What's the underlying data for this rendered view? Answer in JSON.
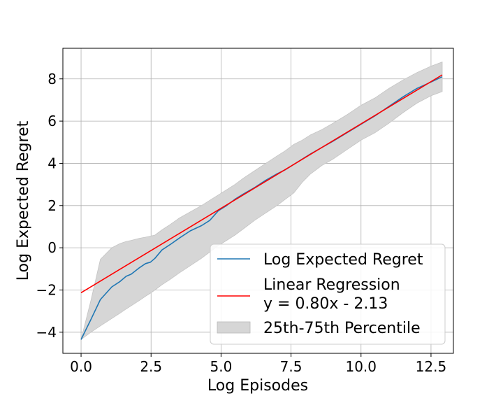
{
  "chart_data": {
    "type": "line",
    "xlabel": "Log Episodes",
    "ylabel": "Log Expected Regret",
    "xlim": [
      -0.65,
      13.3
    ],
    "ylim": [
      -5.0,
      9.45
    ],
    "xticks": [
      0.0,
      2.5,
      5.0,
      7.5,
      10.0,
      12.5
    ],
    "xtick_labels": [
      "0.0",
      "2.5",
      "5.0",
      "7.5",
      "10.0",
      "12.5"
    ],
    "yticks": [
      -4,
      -2,
      0,
      2,
      4,
      6,
      8
    ],
    "ytick_labels": [
      "−4",
      "−2",
      "0",
      "2",
      "4",
      "6",
      "8"
    ],
    "grid": true,
    "legend_position": "lower-right",
    "series": [
      {
        "name": "Log Expected Regret",
        "color": "#1f77b4",
        "kind": "line",
        "x": [
          0,
          0.35,
          0.69,
          1.1,
          1.39,
          1.61,
          1.79,
          2.08,
          2.3,
          2.48,
          2.64,
          2.89,
          3.18,
          3.5,
          3.9,
          4.3,
          4.6,
          4.9,
          5.2,
          5.5,
          5.8,
          6.2,
          6.6,
          7.0,
          7.3,
          7.6,
          7.9,
          8.2,
          8.6,
          9.0,
          9.5,
          10.0,
          10.5,
          11.0,
          11.5,
          12.0,
          12.5,
          12.9
        ],
        "y": [
          -4.35,
          -3.4,
          -2.45,
          -1.85,
          -1.6,
          -1.35,
          -1.25,
          -0.95,
          -0.75,
          -0.68,
          -0.5,
          -0.1,
          0.15,
          0.45,
          0.8,
          1.05,
          1.3,
          1.75,
          2.0,
          2.3,
          2.55,
          2.85,
          3.2,
          3.5,
          3.7,
          3.95,
          4.2,
          4.45,
          4.75,
          5.05,
          5.45,
          5.85,
          6.25,
          6.7,
          7.15,
          7.55,
          7.85,
          8.1
        ]
      },
      {
        "name": "Linear Regression\ny = 0.80x - 2.13",
        "color": "#ff0000",
        "kind": "line",
        "slope": 0.8,
        "intercept": -2.13,
        "x": [
          0,
          12.9
        ],
        "y": [
          -2.13,
          8.19
        ]
      },
      {
        "name": "25th-75th Percentile",
        "color": "#d6d6d6",
        "kind": "band",
        "x": [
          0,
          0.35,
          0.69,
          1.1,
          1.39,
          1.61,
          1.79,
          2.08,
          2.3,
          2.48,
          2.64,
          2.89,
          3.18,
          3.5,
          3.9,
          4.3,
          4.6,
          4.9,
          5.2,
          5.5,
          5.8,
          6.2,
          6.6,
          7.0,
          7.3,
          7.6,
          7.9,
          8.2,
          8.6,
          9.0,
          9.5,
          10.0,
          10.5,
          11.0,
          11.5,
          12.0,
          12.5,
          12.9
        ],
        "y_low": [
          -4.35,
          -4.0,
          -3.7,
          -3.35,
          -3.1,
          -2.9,
          -2.75,
          -2.5,
          -2.3,
          -2.15,
          -2.0,
          -1.75,
          -1.5,
          -1.2,
          -0.85,
          -0.5,
          -0.2,
          0.1,
          0.35,
          0.6,
          0.9,
          1.3,
          1.65,
          2.0,
          2.3,
          2.6,
          3.1,
          3.5,
          3.9,
          4.2,
          4.65,
          5.1,
          5.45,
          5.9,
          6.4,
          6.85,
          7.2,
          7.4
        ],
        "y_high": [
          -4.35,
          -2.5,
          -0.55,
          0.0,
          0.2,
          0.3,
          0.35,
          0.45,
          0.5,
          0.55,
          0.6,
          0.85,
          1.1,
          1.4,
          1.7,
          2.0,
          2.25,
          2.5,
          2.75,
          3.0,
          3.3,
          3.65,
          4.0,
          4.35,
          4.6,
          4.9,
          5.1,
          5.35,
          5.6,
          5.9,
          6.3,
          6.75,
          7.1,
          7.55,
          7.95,
          8.3,
          8.6,
          8.8
        ]
      }
    ],
    "legend": [
      {
        "key": "regret",
        "lines": [
          "Log Expected Regret"
        ],
        "color": "#1f77b4",
        "kind": "line"
      },
      {
        "key": "regression",
        "lines": [
          "Linear Regression",
          "y = 0.80x - 2.13"
        ],
        "color": "#ff0000",
        "kind": "line"
      },
      {
        "key": "band",
        "lines": [
          "25th-75th Percentile"
        ],
        "color": "#d6d6d6",
        "kind": "patch"
      }
    ]
  }
}
